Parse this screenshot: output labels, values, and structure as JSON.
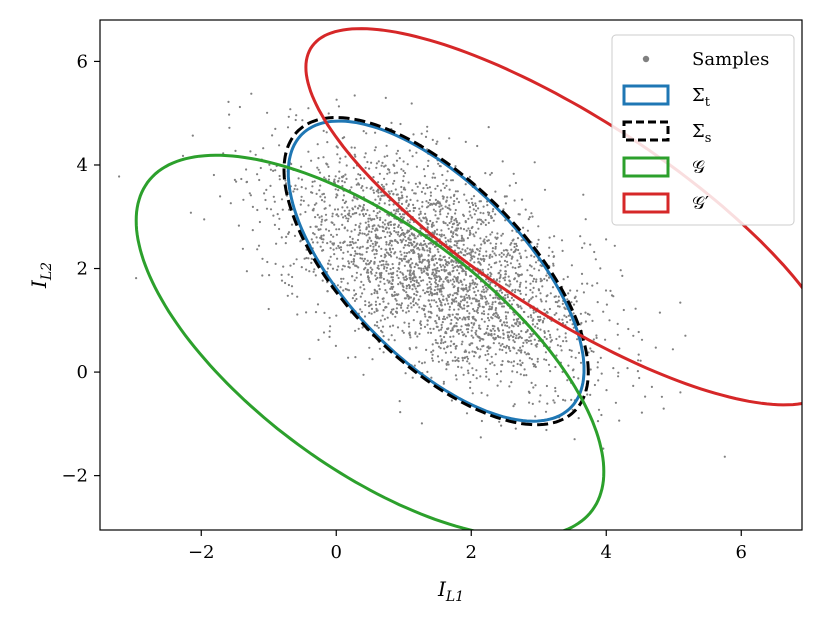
{
  "chart_data": {
    "type": "scatter",
    "title": "",
    "xlabel": "I_L1",
    "ylabel": "I_L2",
    "xlim": [
      -3.5,
      6.9
    ],
    "ylim": [
      -3.05,
      6.8
    ],
    "x_ticks": [
      -2,
      0,
      2,
      4,
      6
    ],
    "y_ticks": [
      -2,
      0,
      2,
      4,
      6
    ],
    "x_tick_labels": [
      "−2",
      "0",
      "2",
      "4",
      "6"
    ],
    "y_tick_labels": [
      "−2",
      "0",
      "2",
      "4",
      "6"
    ],
    "grid": false,
    "legend_position": "top-right",
    "samples": {
      "name": "Samples",
      "color": "#808080",
      "count": 3000,
      "mean": [
        1.5,
        2.0
      ],
      "cov": [
        [
          1.3,
          -0.72
        ],
        [
          -0.72,
          1.3
        ]
      ]
    },
    "ellipses": [
      {
        "name": "Σt",
        "label_main": "Σ",
        "label_sub": "t",
        "color": "#1f77b4",
        "dashed": false,
        "center": [
          1.48,
          1.95
        ],
        "cov": [
          [
            1.2,
            -1.04
          ],
          [
            -1.04,
            2.1
          ]
        ]
      },
      {
        "name": "Σs",
        "label_main": "Σ",
        "label_sub": "s",
        "color": "#000000",
        "dashed": true,
        "center": [
          1.48,
          1.95
        ],
        "cov": [
          [
            1.27,
            -1.1
          ],
          [
            -1.1,
            2.2
          ]
        ]
      },
      {
        "name": "𝒢",
        "label_main": "𝒢",
        "label_sub": "",
        "color": "#2ca02c",
        "dashed": false,
        "center": [
          0.5,
          0.5
        ],
        "cov": [
          [
            3.0,
            -2.1
          ],
          [
            -2.1,
            3.4
          ]
        ]
      },
      {
        "name": "𝒢′",
        "label_main": "𝒢′",
        "label_sub": "",
        "color": "#d62728",
        "dashed": false,
        "center": [
          3.5,
          3.0
        ],
        "cov": [
          [
            3.9,
            -2.85
          ],
          [
            -2.85,
            3.3
          ]
        ]
      }
    ]
  }
}
